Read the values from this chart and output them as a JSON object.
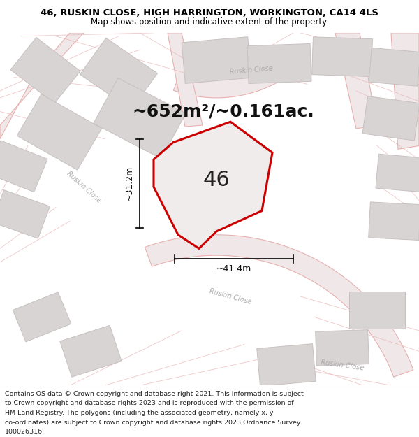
{
  "title_line1": "46, RUSKIN CLOSE, HIGH HARRINGTON, WORKINGTON, CA14 4LS",
  "title_line2": "Map shows position and indicative extent of the property.",
  "area_text": "~652m²/~0.161ac.",
  "label_46": "46",
  "dim_width": "~41.4m",
  "dim_height": "~31.2m",
  "footer_lines": [
    "Contains OS data © Crown copyright and database right 2021. This information is subject",
    "to Crown copyright and database rights 2023 and is reproduced with the permission of",
    "HM Land Registry. The polygons (including the associated geometry, namely x, y",
    "co-ordinates) are subject to Crown copyright and database rights 2023 Ordnance Survey",
    "100026316."
  ],
  "map_bg": "#f7f4f4",
  "road_outline_color": "#e8b0b0",
  "road_fill_color": "#f0e8e8",
  "building_fill": "#d8d4d4",
  "building_edge": "#c8c0c0",
  "plot_line_color": "#e8a8a8",
  "property_line_color": "#cc0000",
  "property_fill": "#f0ecec",
  "title_fontsize": 9.5,
  "subtitle_fontsize": 8.5,
  "area_fontsize": 18,
  "label_fontsize": 22,
  "dim_fontsize": 9,
  "footer_fontsize": 6.8,
  "road_label_fontsize": 7.0,
  "road_label_color": "#aaaaaa"
}
